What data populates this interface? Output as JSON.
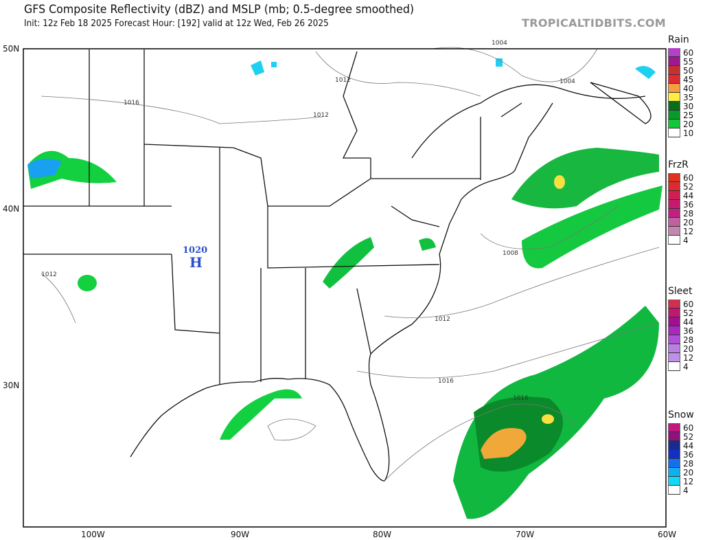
{
  "header": {
    "title": "GFS Composite Reflectivity (dBZ) and MSLP (mb; 0.5-degree smoothed)",
    "subtitle": "Init: 12z Feb 18 2025   Forecast Hour: [192]   valid at 12z Wed, Feb 26 2025",
    "brand": "TROPICALTIDBITS.COM"
  },
  "axes": {
    "lat_labels": [
      "50N",
      "40N",
      "30N"
    ],
    "lon_labels": [
      "100W",
      "90W",
      "80W",
      "70W",
      "60W"
    ]
  },
  "pressure": {
    "high_value": "1020",
    "high_symbol": "H",
    "high_color": "#2a4fc8",
    "isobar_labels": [
      "1004",
      "1004",
      "1012",
      "1012",
      "1016",
      "1012",
      "1008",
      "1012",
      "1016",
      "1016"
    ]
  },
  "legends": [
    {
      "title": "Rain",
      "items": [
        {
          "label": "60",
          "color": "#b540c8"
        },
        {
          "label": "55",
          "color": "#a01890"
        },
        {
          "label": "50",
          "color": "#c83030"
        },
        {
          "label": "45",
          "color": "#e02a30"
        },
        {
          "label": "40",
          "color": "#f5a040"
        },
        {
          "label": "35",
          "color": "#ffee40"
        },
        {
          "label": "30",
          "color": "#0a6e1a"
        },
        {
          "label": "25",
          "color": "#0a9a2a"
        },
        {
          "label": "20",
          "color": "#10c83a"
        },
        {
          "label": "10",
          "color": "#ffffff"
        }
      ]
    },
    {
      "title": "FrzR",
      "items": [
        {
          "label": "60",
          "color": "#e03020"
        },
        {
          "label": "52",
          "color": "#e02a30"
        },
        {
          "label": "44",
          "color": "#d01e50"
        },
        {
          "label": "36",
          "color": "#c81870"
        },
        {
          "label": "28",
          "color": "#c02080"
        },
        {
          "label": "20",
          "color": "#c060a0"
        },
        {
          "label": "12",
          "color": "#c488b0"
        },
        {
          "label": "4",
          "color": "#ffffff"
        }
      ]
    },
    {
      "title": "Sleet",
      "items": [
        {
          "label": "60",
          "color": "#d03050"
        },
        {
          "label": "52",
          "color": "#c01870"
        },
        {
          "label": "44",
          "color": "#a01090"
        },
        {
          "label": "36",
          "color": "#a828c0"
        },
        {
          "label": "28",
          "color": "#b050d8"
        },
        {
          "label": "20",
          "color": "#b880e0"
        },
        {
          "label": "12",
          "color": "#c090e8"
        },
        {
          "label": "4",
          "color": "#ffffff"
        }
      ]
    },
    {
      "title": "Snow",
      "items": [
        {
          "label": "60",
          "color": "#c01880"
        },
        {
          "label": "52",
          "color": "#901080"
        },
        {
          "label": "44",
          "color": "#1a2a90"
        },
        {
          "label": "36",
          "color": "#1030c8"
        },
        {
          "label": "28",
          "color": "#1470f0"
        },
        {
          "label": "20",
          "color": "#10b0f0"
        },
        {
          "label": "12",
          "color": "#10d8f8"
        },
        {
          "label": "4",
          "color": "#ffffff"
        }
      ]
    }
  ]
}
